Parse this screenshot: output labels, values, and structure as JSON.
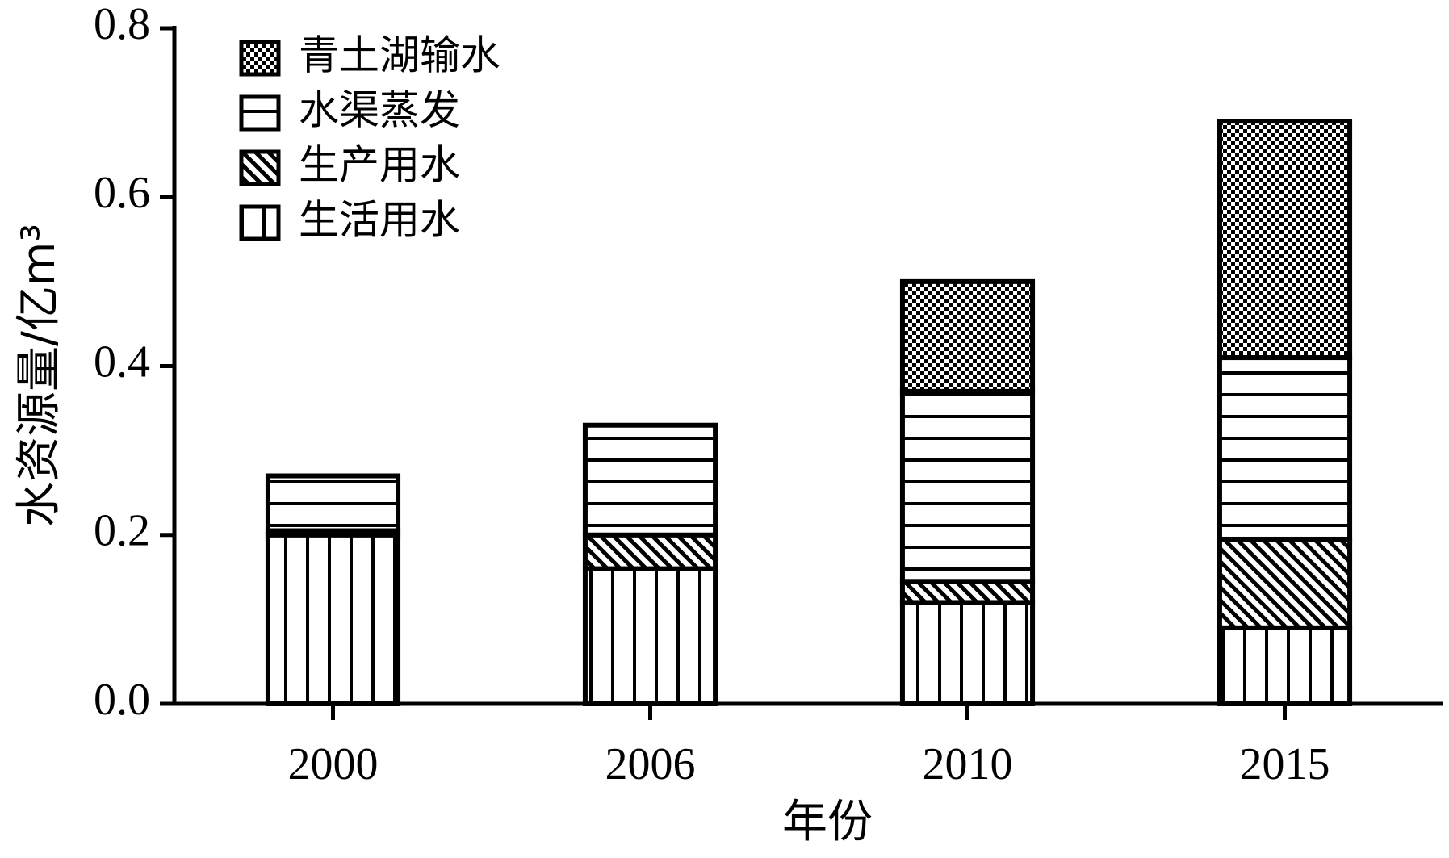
{
  "chart_data": {
    "type": "stacked_bar",
    "x_label": "年份",
    "y_label": "水资源量/亿m³",
    "categories": [
      "2000",
      "2006",
      "2010",
      "2015"
    ],
    "series": [
      {
        "name": "生活用水",
        "color": "#000000",
        "values": [
          0.2,
          0.16,
          0.12,
          0.09
        ]
      },
      {
        "name": "生产用水",
        "color": "#000000",
        "values": [
          0.005,
          0.04,
          0.025,
          0.105
        ]
      },
      {
        "name": "水渠蒸发",
        "color": "#000000",
        "values": [
          0.065,
          0.13,
          0.225,
          0.215
        ]
      },
      {
        "name": "青土湖输水",
        "color": "#000000",
        "values": [
          0,
          0,
          0.13,
          0.28
        ]
      }
    ],
    "ylim": [
      0,
      0.8
    ],
    "yticks": [
      {
        "value": 0,
        "label": "0.0"
      },
      0.2,
      0.4,
      0.6,
      0.8
    ],
    "legend": "upper left"
  }
}
